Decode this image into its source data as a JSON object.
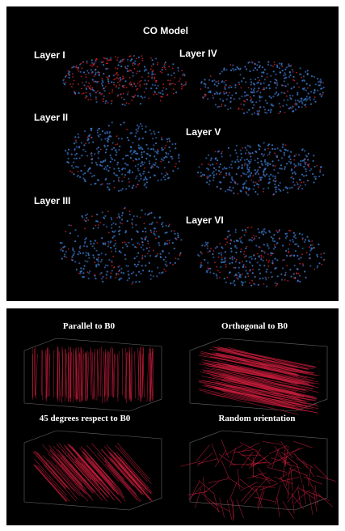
{
  "panels": [
    {
      "title": "CO Model",
      "labels": [
        "Layer I",
        "Layer IV",
        "Layer II",
        "Layer V",
        "Layer III",
        "Layer VI"
      ]
    },
    {
      "labels": [
        "Parallel to B0",
        "Orthogonal to B0",
        "45 degrees respect to B0",
        "Random orientation"
      ]
    }
  ]
}
